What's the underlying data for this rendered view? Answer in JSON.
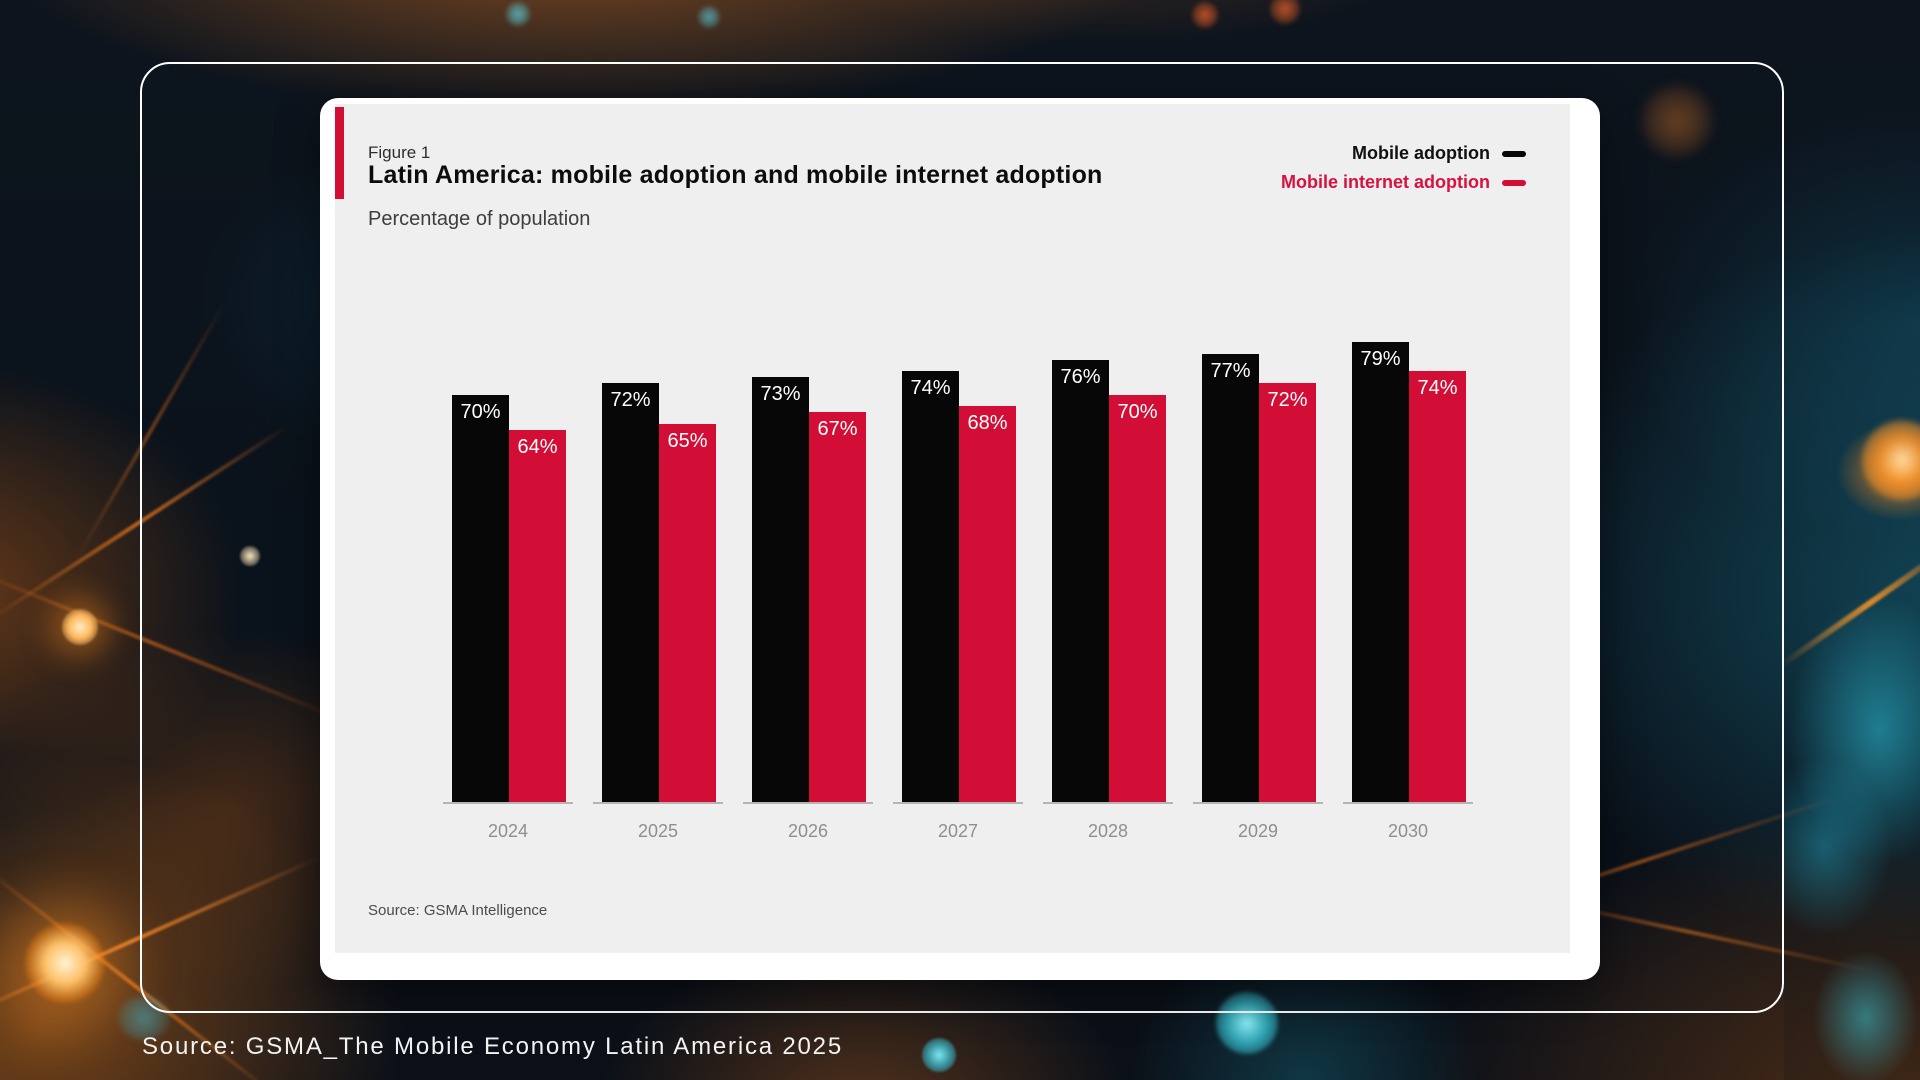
{
  "page": {
    "caption": "Source: GSMA_The Mobile Economy Latin America 2025"
  },
  "figure": {
    "label": "Figure 1",
    "title": "Latin America: mobile adoption and mobile internet adoption",
    "subtitle": "Percentage of population",
    "source": "Source: GSMA Intelligence"
  },
  "colors": {
    "accent_red": "#D30E36",
    "bar_black": "#070707",
    "bar_red": "#D30E36",
    "legend_black_text": "#111111",
    "legend_red_text": "#D8113F",
    "panel_bg": "#EFEFEF",
    "card_bg": "#FFFFFF",
    "year_label": "#8F8F8F",
    "baseline": "#B5B5B5"
  },
  "chart_data": {
    "type": "bar",
    "title": "Latin America: mobile adoption and mobile internet adoption",
    "subtitle": "Percentage of population",
    "categories": [
      "2024",
      "2025",
      "2026",
      "2027",
      "2028",
      "2029",
      "2030"
    ],
    "series": [
      {
        "name": "Mobile adoption",
        "color": "#070707",
        "values": [
          70,
          72,
          73,
          74,
          76,
          77,
          79
        ]
      },
      {
        "name": "Mobile internet adoption",
        "color": "#D30E36",
        "values": [
          64,
          65,
          67,
          68,
          70,
          72,
          74
        ]
      }
    ],
    "value_suffix": "%",
    "unit": "percent of population",
    "ylim": [
      0,
      100
    ],
    "grid": false,
    "axis_ticks": "none",
    "legend_position": "top-right",
    "bar_value_labels": "inside-top, white",
    "source": "Source: GSMA Intelligence"
  }
}
